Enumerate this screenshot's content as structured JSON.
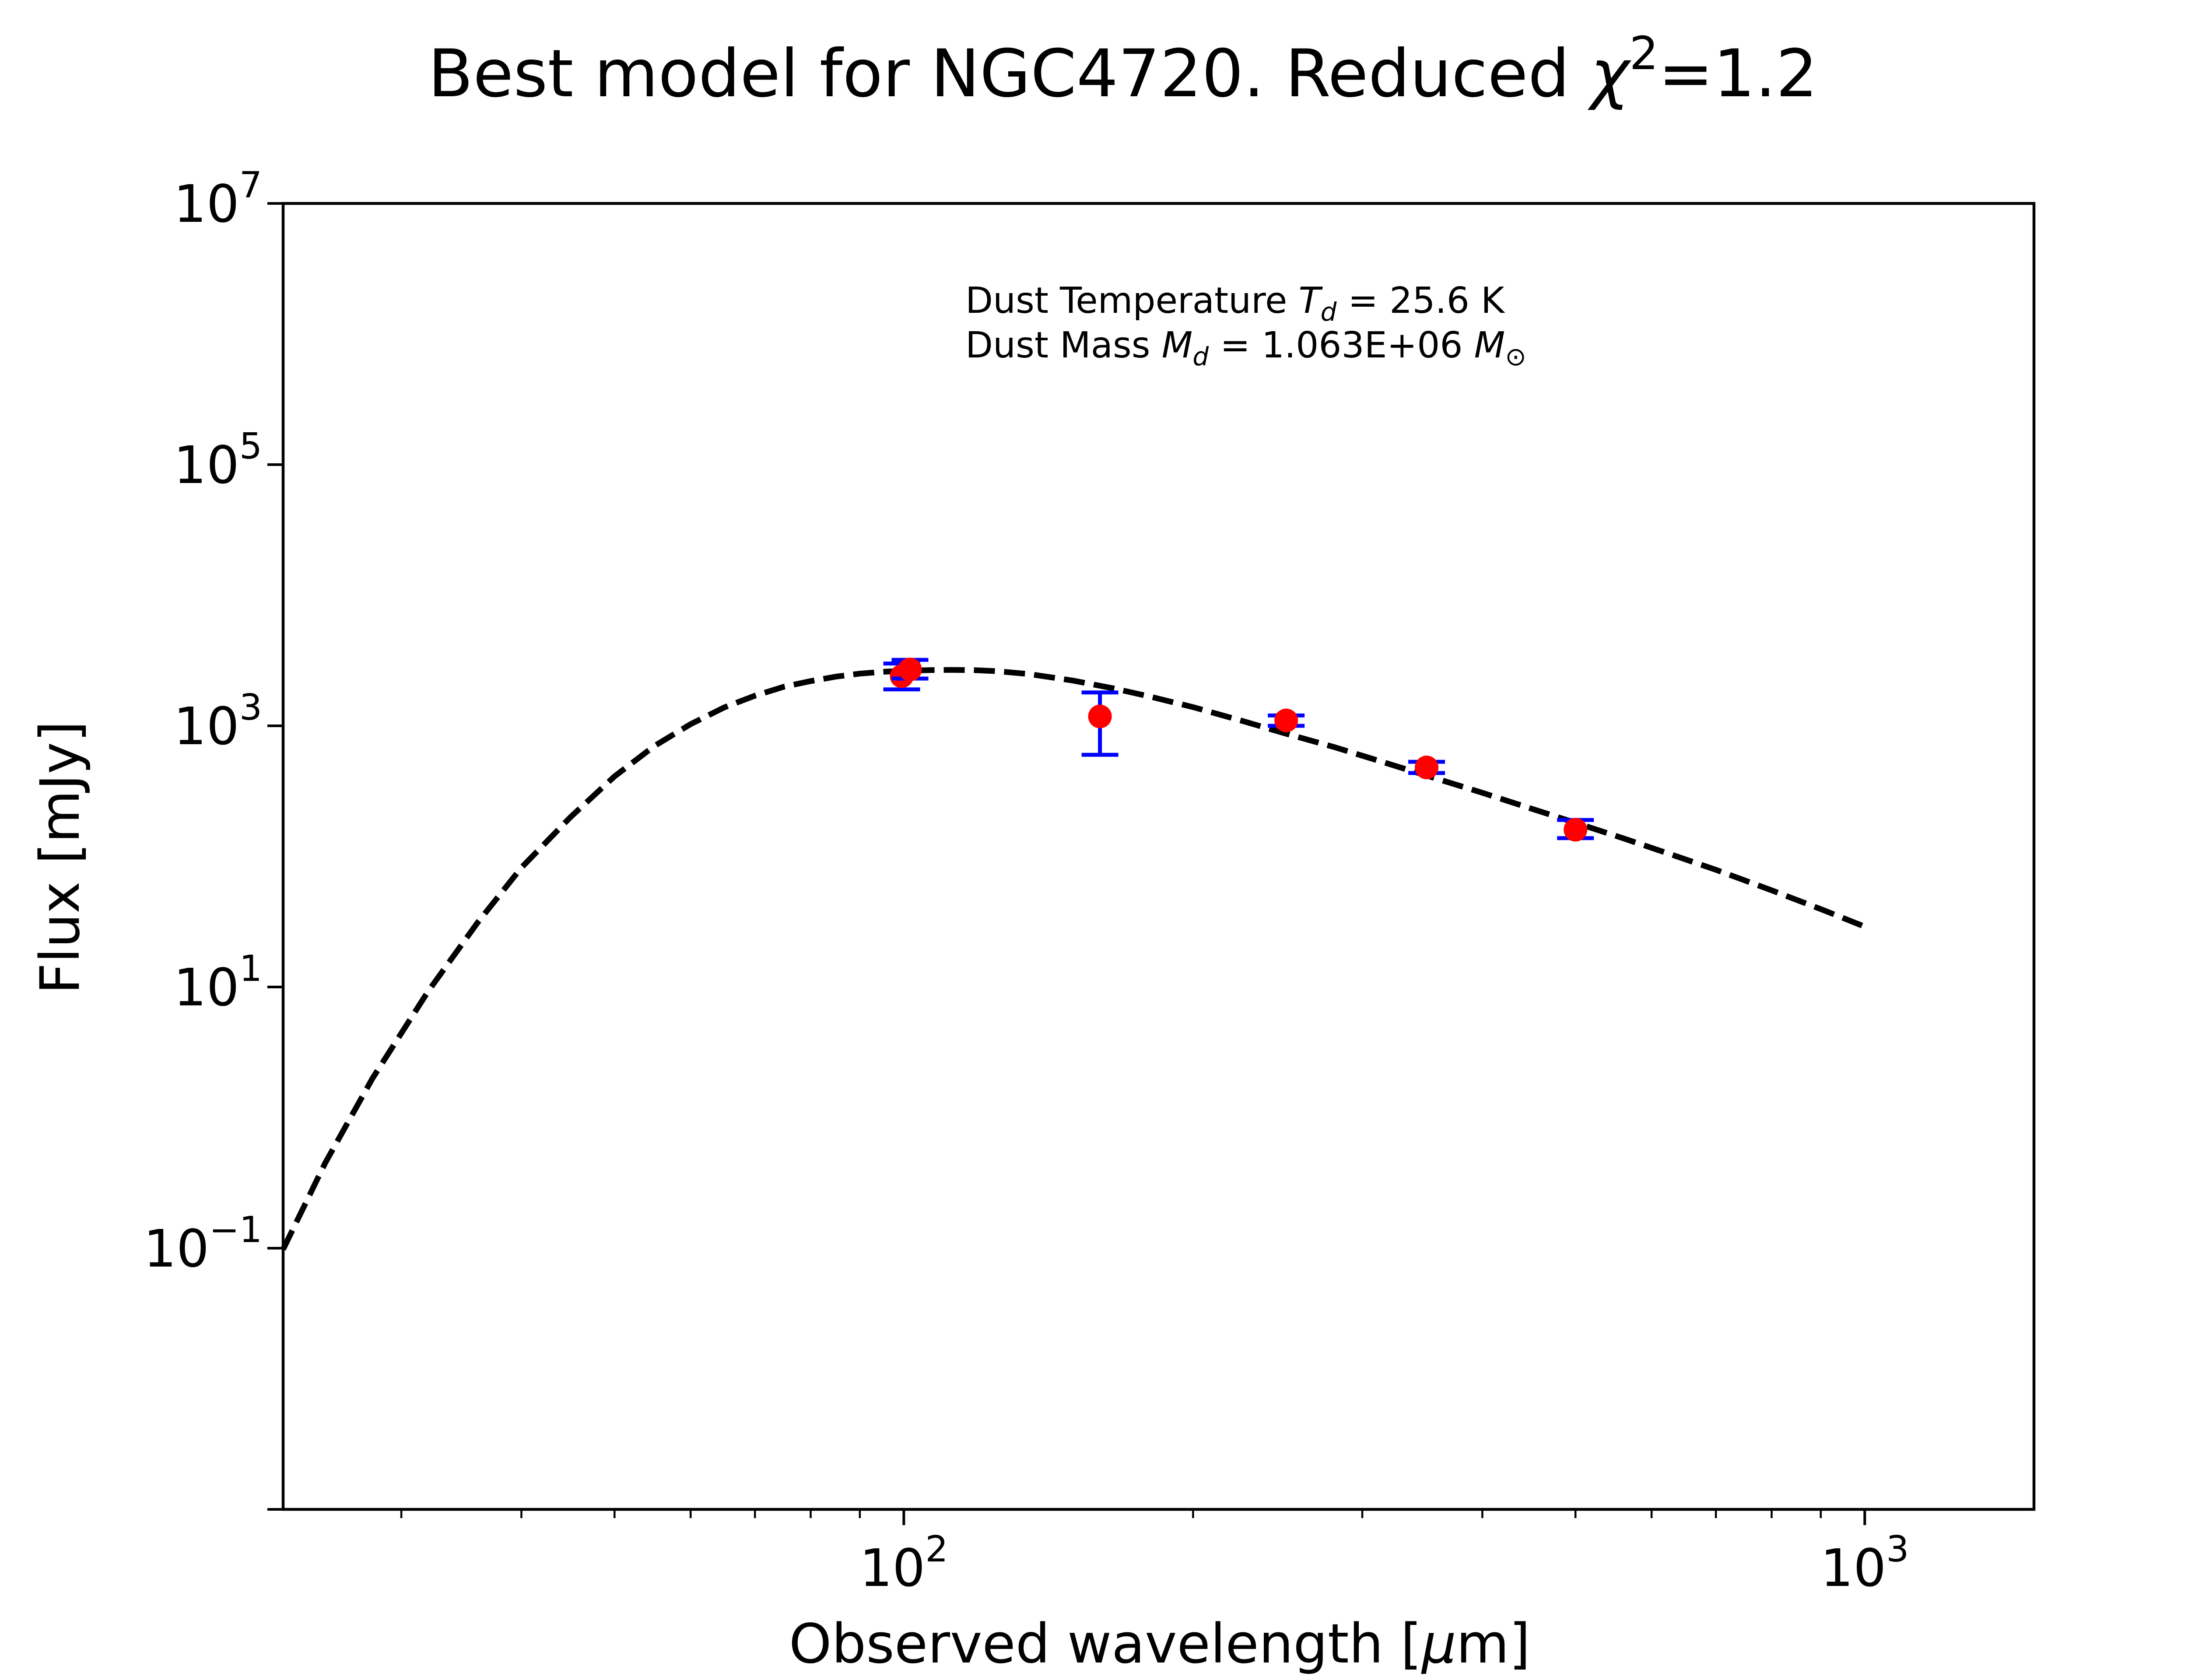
{
  "chart_data": {
    "type": "scatter",
    "title": {
      "prefix": "Best model for NGC4720. Reduced ",
      "chi_symbol": "χ",
      "chi_exponent": "2",
      "suffix": "=1.2"
    },
    "xlabel": {
      "prefix": "Observed wavelength [",
      "mu": "μ",
      "suffix": "m]"
    },
    "ylabel": "Flux [mJy]",
    "xscale": "log",
    "yscale": "log",
    "xlim": [
      22.6,
      1500
    ],
    "ylim": [
      0.001,
      10000000
    ],
    "x_ticks": [
      {
        "value": 100,
        "base": "10",
        "exp": "2"
      },
      {
        "value": 1000,
        "base": "10",
        "exp": "3"
      }
    ],
    "y_ticks": [
      {
        "value": 10000000,
        "base": "10",
        "exp": "7"
      },
      {
        "value": 100000,
        "base": "10",
        "exp": "5"
      },
      {
        "value": 1000,
        "base": "10",
        "exp": "3"
      },
      {
        "value": 10,
        "base": "10",
        "exp": "1"
      },
      {
        "value": 0.1,
        "base": "10",
        "exp": "−1"
      }
    ],
    "annotations": {
      "temperature": {
        "prefix": "Dust Temperature ",
        "sym": "T",
        "sub": "d",
        "suffix": " = 25.6 K"
      },
      "mass": {
        "prefix": "Dust Mass ",
        "sym": "M",
        "sub": "d",
        "suffix": " = 1.063E+06 ",
        "unit": "M",
        "unit_sub": "⊙"
      }
    },
    "series": [
      {
        "kind": "model",
        "style": "dashed",
        "color": "#000000",
        "x": [
          22.6,
          25,
          28,
          32,
          36,
          40,
          45,
          50,
          55,
          60,
          65,
          70,
          75,
          80,
          85,
          90,
          95,
          100,
          106,
          112,
          118,
          125,
          135,
          150,
          165,
          180,
          200,
          225,
          250,
          280,
          320,
          360,
          400,
          450,
          500,
          560,
          630,
          700,
          800,
          900,
          1000
        ],
        "y": [
          0.098,
          0.45,
          2.0,
          9.3,
          31,
          82,
          200,
          410,
          700,
          1030,
          1380,
          1700,
          1990,
          2200,
          2380,
          2510,
          2590,
          2640,
          2670,
          2680,
          2670,
          2620,
          2490,
          2220,
          1940,
          1680,
          1390,
          1090,
          870,
          690,
          510,
          390,
          307,
          232,
          181,
          138,
          103,
          79,
          55,
          39.5,
          29
        ]
      },
      {
        "kind": "observed",
        "color": "#ff0000",
        "error_color": "#0000ff",
        "points": [
          {
            "x": 99.5,
            "y": 2400,
            "err_low": 1900,
            "err_high": 3000
          },
          {
            "x": 101.5,
            "y": 2700,
            "err_low": 2300,
            "err_high": 3200
          },
          {
            "x": 160,
            "y": 1180,
            "err_low": 600,
            "err_high": 1800
          },
          {
            "x": 250,
            "y": 1100,
            "err_low": 1000,
            "err_high": 1200
          },
          {
            "x": 350,
            "y": 480,
            "err_low": 435,
            "err_high": 530
          },
          {
            "x": 500,
            "y": 160,
            "err_low": 138,
            "err_high": 190
          }
        ]
      }
    ],
    "grid": false,
    "legend": "none"
  }
}
